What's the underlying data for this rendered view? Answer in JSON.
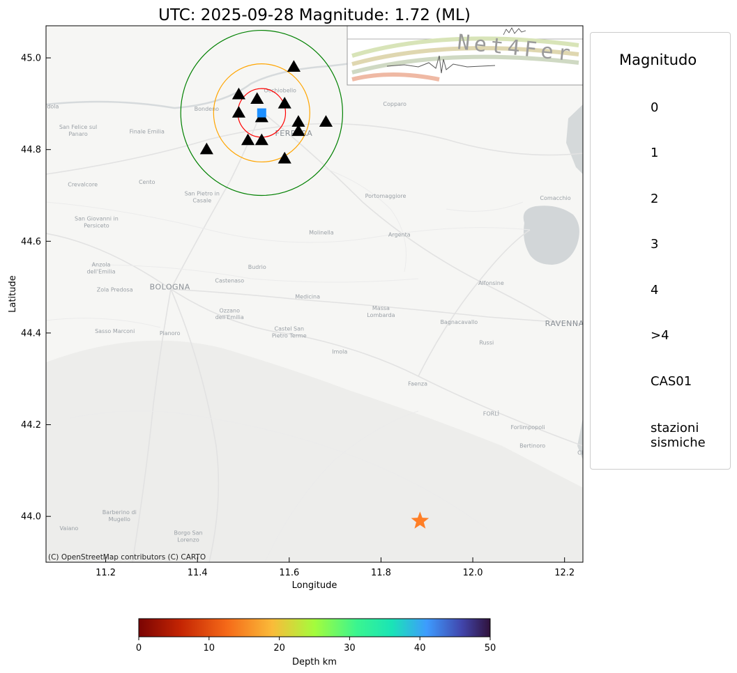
{
  "title": "UTC: 2025-09-28 Magnitude: 1.72 (ML)",
  "map": {
    "xlabel": "Longitude",
    "ylabel": "Latitude",
    "xlim": [
      11.07,
      12.24
    ],
    "ylim": [
      43.9,
      45.07
    ],
    "xticks": [
      "11.2",
      "11.4",
      "11.6",
      "11.8",
      "12.0",
      "12.2"
    ],
    "yticks": [
      "44.0",
      "44.2",
      "44.4",
      "44.6",
      "44.8",
      "45.0"
    ],
    "attribution": "(C) OpenStreetMap contributors (C) CARTO",
    "logo_text": "Net4Fer",
    "station_cas01": {
      "name": "CAS01",
      "lon": 11.54,
      "lat": 44.88,
      "color": "#1e90ff"
    },
    "stations": [
      {
        "lon": 11.61,
        "lat": 44.98
      },
      {
        "lon": 11.49,
        "lat": 44.92
      },
      {
        "lon": 11.53,
        "lat": 44.91
      },
      {
        "lon": 11.59,
        "lat": 44.9
      },
      {
        "lon": 11.49,
        "lat": 44.88
      },
      {
        "lon": 11.54,
        "lat": 44.87
      },
      {
        "lon": 11.62,
        "lat": 44.86
      },
      {
        "lon": 11.68,
        "lat": 44.86
      },
      {
        "lon": 11.62,
        "lat": 44.84
      },
      {
        "lon": 11.51,
        "lat": 44.82
      },
      {
        "lon": 11.54,
        "lat": 44.82
      },
      {
        "lon": 11.42,
        "lat": 44.8
      },
      {
        "lon": 11.59,
        "lat": 44.78
      }
    ],
    "event": {
      "lon": 11.885,
      "lat": 43.99,
      "magnitude": 1.72,
      "color": "#ff7f27"
    },
    "circles": [
      {
        "center_lon": 11.54,
        "center_lat": 44.88,
        "radius_lat": 0.053,
        "color": "#ff0000"
      },
      {
        "center_lon": 11.54,
        "center_lat": 44.88,
        "radius_lat": 0.107,
        "color": "#ffa500"
      },
      {
        "center_lon": 11.54,
        "center_lat": 44.88,
        "radius_lat": 0.18,
        "color": "#008000"
      }
    ],
    "place_labels": [
      {
        "text": "BOLOGNA",
        "lon": 11.34,
        "lat": 44.495,
        "major": true
      },
      {
        "text": "FERRARA",
        "lon": 11.61,
        "lat": 44.83,
        "major": true
      },
      {
        "text": "RAVENNA",
        "lon": 12.2,
        "lat": 44.415,
        "major": true
      },
      {
        "text": "Bondeno",
        "lon": 11.42,
        "lat": 44.885
      },
      {
        "text": "Occhiobello",
        "lon": 11.58,
        "lat": 44.925
      },
      {
        "text": "Copparo",
        "lon": 11.83,
        "lat": 44.895
      },
      {
        "text": "San Felice sul",
        "lon": 11.14,
        "lat": 44.845
      },
      {
        "text": "Panaro",
        "lon": 11.14,
        "lat": 44.83
      },
      {
        "text": "Finale Emilia",
        "lon": 11.29,
        "lat": 44.835
      },
      {
        "text": "Crevalcore",
        "lon": 11.15,
        "lat": 44.72
      },
      {
        "text": "Cento",
        "lon": 11.29,
        "lat": 44.725
      },
      {
        "text": "San Pietro in",
        "lon": 11.41,
        "lat": 44.7
      },
      {
        "text": "Casale",
        "lon": 11.41,
        "lat": 44.685
      },
      {
        "text": "Portomaggiore",
        "lon": 11.81,
        "lat": 44.695
      },
      {
        "text": "Comacchio",
        "lon": 12.18,
        "lat": 44.69
      },
      {
        "text": "San Giovanni in",
        "lon": 11.18,
        "lat": 44.645
      },
      {
        "text": "Persiceto",
        "lon": 11.18,
        "lat": 44.63
      },
      {
        "text": "Molinella",
        "lon": 11.67,
        "lat": 44.615
      },
      {
        "text": "Argenta",
        "lon": 11.84,
        "lat": 44.61
      },
      {
        "text": "Anzola",
        "lon": 11.19,
        "lat": 44.545
      },
      {
        "text": "dell'Emilia",
        "lon": 11.19,
        "lat": 44.53
      },
      {
        "text": "Budrio",
        "lon": 11.53,
        "lat": 44.54
      },
      {
        "text": "Castenaso",
        "lon": 11.47,
        "lat": 44.51
      },
      {
        "text": "Alfonsine",
        "lon": 12.04,
        "lat": 44.505
      },
      {
        "text": "Zola Predosa",
        "lon": 11.22,
        "lat": 44.49
      },
      {
        "text": "Medicina",
        "lon": 11.64,
        "lat": 44.475
      },
      {
        "text": "Ozzano",
        "lon": 11.47,
        "lat": 44.445
      },
      {
        "text": "dell'Emilia",
        "lon": 11.47,
        "lat": 44.43
      },
      {
        "text": "Massa",
        "lon": 11.8,
        "lat": 44.45
      },
      {
        "text": "Lombarda",
        "lon": 11.8,
        "lat": 44.435
      },
      {
        "text": "Bagnacavallo",
        "lon": 11.97,
        "lat": 44.42
      },
      {
        "text": "Castel San",
        "lon": 11.6,
        "lat": 44.405
      },
      {
        "text": "Pietro Terme",
        "lon": 11.6,
        "lat": 44.39
      },
      {
        "text": "Sasso Marconi",
        "lon": 11.22,
        "lat": 44.4
      },
      {
        "text": "Pianoro",
        "lon": 11.34,
        "lat": 44.395
      },
      {
        "text": "Russi",
        "lon": 12.03,
        "lat": 44.375
      },
      {
        "text": "Imola",
        "lon": 11.71,
        "lat": 44.355
      },
      {
        "text": "Faenza",
        "lon": 11.88,
        "lat": 44.285
      },
      {
        "text": "FORLÌ",
        "lon": 12.04,
        "lat": 44.22
      },
      {
        "text": "Forlimpopoli",
        "lon": 12.12,
        "lat": 44.19
      },
      {
        "text": "Bertinoro",
        "lon": 12.13,
        "lat": 44.15
      },
      {
        "text": "CES",
        "lon": 12.24,
        "lat": 44.135
      },
      {
        "text": "Barberino di",
        "lon": 11.23,
        "lat": 44.005
      },
      {
        "text": "Mugello",
        "lon": 11.23,
        "lat": 43.99
      },
      {
        "text": "Vaiano",
        "lon": 11.12,
        "lat": 43.97
      },
      {
        "text": "Borgo San",
        "lon": 11.38,
        "lat": 43.96
      },
      {
        "text": "Lorenzo",
        "lon": 11.38,
        "lat": 43.945
      },
      {
        "text": "dola",
        "lon": 11.085,
        "lat": 44.89
      }
    ]
  },
  "legend": {
    "title": "Magnitudo",
    "magnitude_items": [
      {
        "label": "0",
        "size": 18
      },
      {
        "label": "1",
        "size": 24
      },
      {
        "label": "2",
        "size": 34
      },
      {
        "label": "3",
        "size": 46
      },
      {
        "label": "4",
        "size": 64
      }
    ],
    "over_item": {
      "label": ">4",
      "size": 64
    },
    "star_color": "#ff0000",
    "cas01_label": "CAS01",
    "stations_label_line1": "stazioni",
    "stations_label_line2": "sismiche"
  },
  "colorbar": {
    "label": "Depth km",
    "ticks": [
      "0",
      "10",
      "20",
      "30",
      "40",
      "50"
    ],
    "range": [
      0,
      50
    ]
  }
}
